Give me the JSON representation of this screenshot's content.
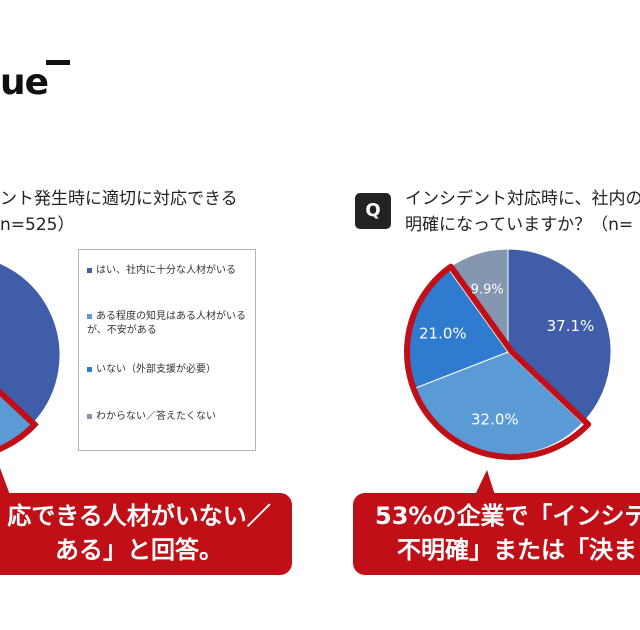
{
  "logo": {
    "text": "ue"
  },
  "left_chart": {
    "title_line1": "ント発生時に適切に対応できる",
    "title_line2": "n=525）",
    "legend": [
      {
        "label": "はい、社内に十分な人材がいる",
        "color": "#3f5da8"
      },
      {
        "label": "ある程度の知見はある人材がいるが、不安がある",
        "color": "#5b9bd5"
      },
      {
        "label": "いない（外部支援が必要）",
        "color": "#2e7bcf"
      },
      {
        "label": "わからない／答えたくない",
        "color": "#8496b0"
      }
    ],
    "callout_line1": "応できる人材がいない／",
    "callout_line2": "ある」と回答。"
  },
  "right_chart": {
    "badge": "Q",
    "title_line1": "インシデント対応時に、社内の",
    "title_line2": "明確になっていますか？（n=",
    "callout_line1": "53%の企業で「インシデ",
    "callout_line2": "不明確」または「決ま"
  },
  "chart_data": [
    {
      "type": "pie",
      "title": "インシデント対応時に、社内の 明確になっていますか？（n=",
      "categories": [
        "",
        "",
        "",
        ""
      ],
      "values": [
        37.1,
        32.0,
        21.0,
        9.9
      ],
      "labels": [
        "37.1%",
        "32.0%",
        "21.0%",
        "9.9%"
      ],
      "colors": [
        "#3f5da8",
        "#5b9bd5",
        "#2e7bcf",
        "#8496b0"
      ],
      "highlight": "32.0% + 21.0%",
      "highlight_color": "#c00f17"
    }
  ]
}
